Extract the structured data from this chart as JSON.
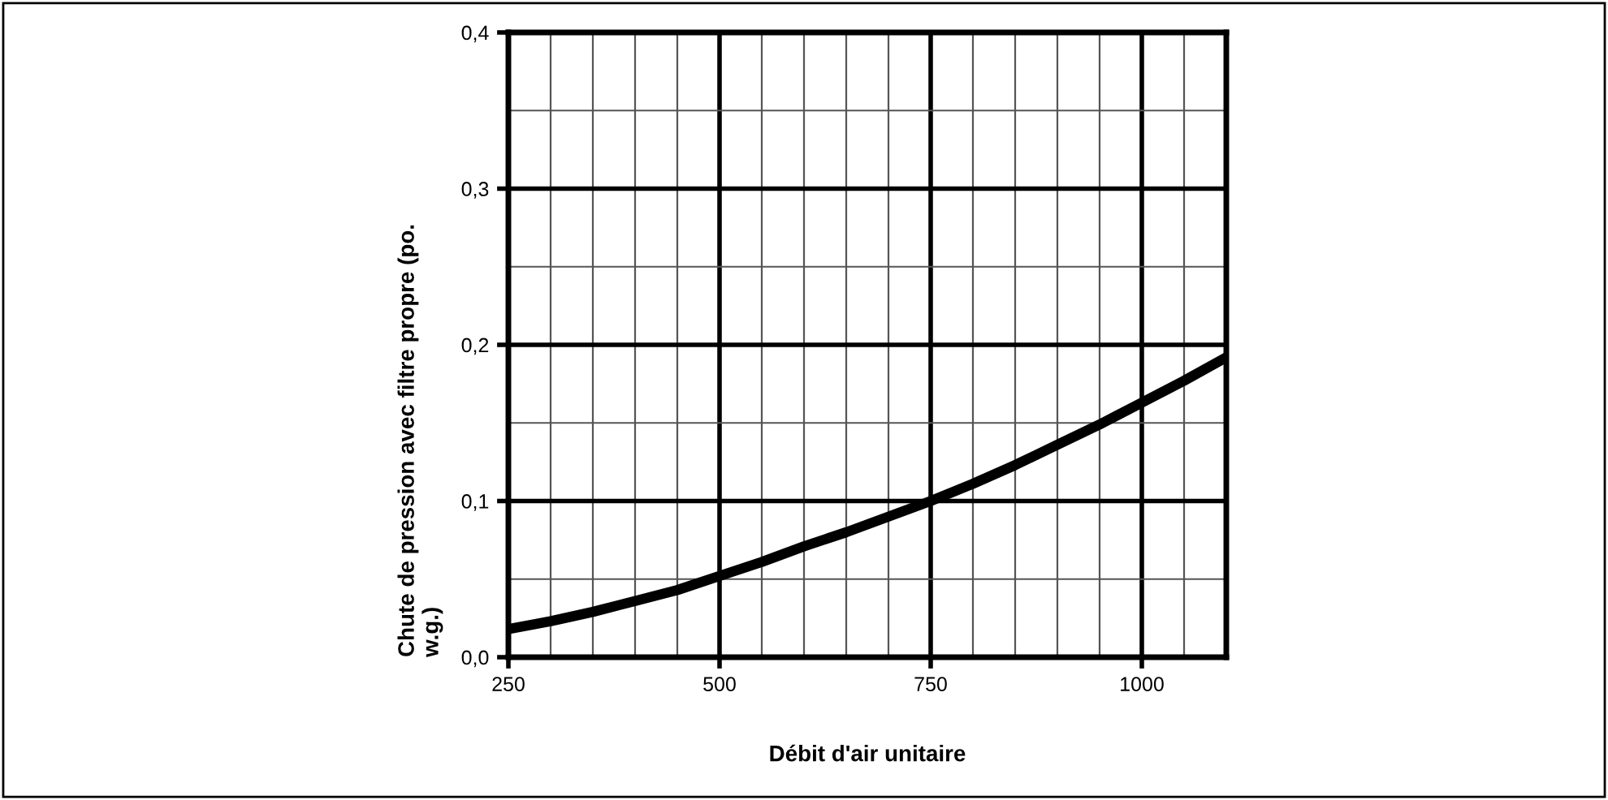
{
  "chart_data": {
    "type": "line",
    "xlabel": "Débit d'air unitaire",
    "ylabel": "Chute de pression avec filtre propre (po. w.g.)",
    "x": [
      250,
      300,
      350,
      400,
      450,
      500,
      550,
      600,
      650,
      700,
      750,
      800,
      850,
      900,
      950,
      1000,
      1050,
      1100
    ],
    "series": [
      {
        "color": "#000000",
        "values": [
          0.018,
          0.023,
          0.029,
          0.036,
          0.043,
          0.052,
          0.061,
          0.071,
          0.08,
          0.09,
          0.1,
          0.111,
          0.123,
          0.136,
          0.149,
          0.163,
          0.177,
          0.192
        ]
      }
    ],
    "xlim": [
      250,
      1100
    ],
    "ylim": [
      0,
      0.4
    ],
    "xticks": [
      250,
      {
        "value": 300,
        "label": null
      },
      {
        "value": 350,
        "label": null
      },
      {
        "value": 400,
        "label": null
      },
      {
        "value": 450,
        "label": null
      },
      500,
      {
        "value": 550,
        "label": null
      },
      {
        "value": 600,
        "label": null
      },
      {
        "value": 650,
        "label": null
      },
      {
        "value": 700,
        "label": null
      },
      750,
      {
        "value": 800,
        "label": null
      },
      {
        "value": 850,
        "label": null
      },
      {
        "value": 900,
        "label": null
      },
      {
        "value": 950,
        "label": null
      },
      1000,
      {
        "value": 1050,
        "label": null
      }
    ],
    "yticks": [
      {
        "value": 0,
        "label": "0,0"
      },
      {
        "value": 0.05,
        "label": null
      },
      {
        "value": 0.1,
        "label": "0,1"
      },
      {
        "value": 0.15,
        "label": null
      },
      {
        "value": 0.2,
        "label": "0,2"
      },
      {
        "value": 0.25,
        "label": null
      },
      {
        "value": 0.3,
        "label": "0,3"
      },
      {
        "value": 0.35,
        "label": null
      },
      {
        "value": 0.4,
        "label": "0,4"
      }
    ],
    "grid": true,
    "marker": "none",
    "line_style": "solid",
    "legend": false
  }
}
